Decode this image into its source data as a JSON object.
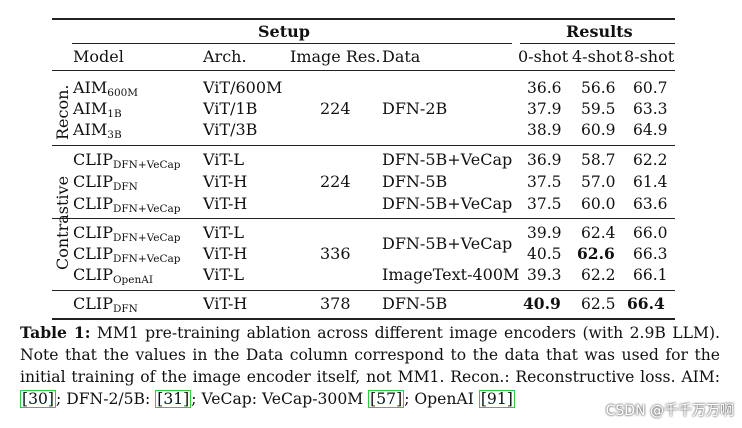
{
  "table": {
    "group_headers": {
      "setup": "Setup",
      "results": "Results"
    },
    "columns": {
      "model": "Model",
      "arch": "Arch.",
      "res": "Image Res.",
      "data": "Data",
      "zero": "0-shot",
      "four": "4-shot",
      "eight": "8-shot"
    },
    "groups": {
      "recon": "Recon.",
      "contrastive": "Contrastive"
    },
    "rows": [
      {
        "model": "AIM",
        "model_sub": "600M",
        "arch": "ViT/600M",
        "zero": "36.6",
        "four": "56.6",
        "eight": "60.7"
      },
      {
        "model": "AIM",
        "model_sub": "1B",
        "arch": "ViT/1B",
        "zero": "37.9",
        "four": "59.5",
        "eight": "63.3"
      },
      {
        "model": "AIM",
        "model_sub": "3B",
        "arch": "ViT/3B",
        "zero": "38.9",
        "four": "60.9",
        "eight": "64.9"
      },
      {
        "model": "CLIP",
        "model_sub": "DFN+VeCap",
        "arch": "ViT-L",
        "data": "DFN-5B+VeCap",
        "zero": "36.9",
        "four": "58.7",
        "eight": "62.2"
      },
      {
        "model": "CLIP",
        "model_sub": "DFN",
        "arch": "ViT-H",
        "data": "DFN-5B",
        "zero": "37.5",
        "four": "57.0",
        "eight": "61.4"
      },
      {
        "model": "CLIP",
        "model_sub": "DFN+VeCap",
        "arch": "ViT-H",
        "data": "DFN-5B+VeCap",
        "zero": "37.5",
        "four": "60.0",
        "eight": "63.6"
      },
      {
        "model": "CLIP",
        "model_sub": "DFN+VeCap",
        "arch": "ViT-L",
        "zero": "39.9",
        "four": "62.4",
        "eight": "66.0"
      },
      {
        "model": "CLIP",
        "model_sub": "DFN+VeCap",
        "arch": "ViT-H",
        "zero": "40.5",
        "four": "62.6",
        "eight": "66.3"
      },
      {
        "model": "CLIP",
        "model_sub": "OpenAI",
        "arch": "ViT-L",
        "data": "ImageText-400M",
        "zero": "39.3",
        "four": "62.2",
        "eight": "66.1"
      },
      {
        "model": "CLIP",
        "model_sub": "DFN",
        "arch": "ViT-H",
        "res": "378",
        "data": "DFN-5B",
        "zero": "40.9",
        "four": "62.5",
        "eight": "66.4"
      }
    ],
    "merged": {
      "recon_res": "224",
      "recon_data": "DFN-2B",
      "contrastive1_res": "224",
      "contrastive2_res": "336",
      "contrastive2_data": "DFN-5B+VeCap"
    }
  },
  "caption": {
    "label": "Table 1:",
    "text1": " MM1 pre-training ablation across different image encoders (with 2.9B LLM). Note that the values in the Data column correspond to the data that was used for the initial training of the image encoder itself, not MM1. Recon.: Reconstructive loss. AIM: ",
    "ref1": "[30]",
    "text2": "; DFN-2/5B: ",
    "ref2": "[31]",
    "text3": "; VeCap: VeCap-300M ",
    "ref3": "[57]",
    "text4": "; OpenAI ",
    "ref4": "[91]"
  },
  "watermark": "CSDN @千千万万啊"
}
